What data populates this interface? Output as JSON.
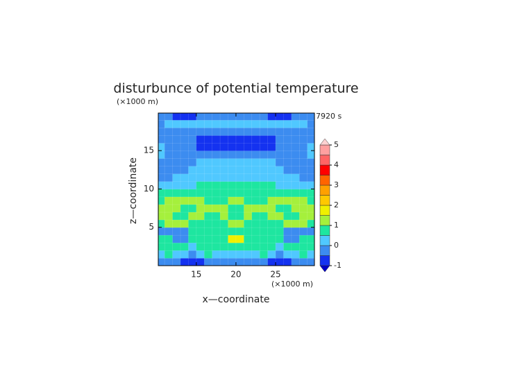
{
  "chart_data": {
    "type": "contour",
    "title": "disturbunce of potential temperature",
    "x_label": "x—coordinate",
    "y_label": "z—coordinate",
    "x_unit": "(×1000 m)",
    "y_unit": "(×1000 m)",
    "time_label": "7920 s",
    "xlim": [
      10.2,
      29.9
    ],
    "ylim": [
      0,
      19.9
    ],
    "xticks": [
      15,
      20,
      25
    ],
    "yticks": [
      5,
      10,
      15
    ],
    "x": [
      10.5,
      11.5,
      12.5,
      13.5,
      14.5,
      15.5,
      16.5,
      17.5,
      18.5,
      19.5,
      20.5,
      21.5,
      22.5,
      23.5,
      24.5,
      25.5,
      26.5,
      27.5,
      28.5,
      29.5
    ],
    "y": [
      0.5,
      1.5,
      2.5,
      3.5,
      4.5,
      5.5,
      6.5,
      7.5,
      8.5,
      9.5,
      10.5,
      11.5,
      12.5,
      13.5,
      14.5,
      15.5,
      16.5,
      17.5,
      18.5,
      19.5
    ],
    "z": [
      [
        -0.2,
        -0.2,
        -0.2,
        -0.7,
        -0.7,
        -0.7,
        -0.2,
        -0.2,
        -0.2,
        -0.2,
        -0.2,
        -0.2,
        -0.2,
        -0.2,
        -0.7,
        -0.7,
        -0.7,
        -0.2,
        -0.2,
        -0.2
      ],
      [
        0.2,
        0.7,
        0.2,
        0.2,
        -0.2,
        0.2,
        0.7,
        0.2,
        0.2,
        0.2,
        0.2,
        0.2,
        0.2,
        0.7,
        0.2,
        -0.2,
        0.2,
        0.2,
        0.7,
        0.2
      ],
      [
        0.7,
        0.7,
        0.7,
        0.7,
        0.2,
        0.7,
        0.7,
        0.7,
        0.7,
        0.7,
        0.7,
        0.7,
        0.7,
        0.7,
        0.7,
        0.2,
        0.7,
        0.7,
        0.7,
        0.7
      ],
      [
        0.7,
        0.7,
        -0.2,
        -0.2,
        0.7,
        0.7,
        0.7,
        0.7,
        0.7,
        1.7,
        1.7,
        0.7,
        0.7,
        0.7,
        0.7,
        0.7,
        -0.2,
        -0.2,
        0.7,
        0.7
      ],
      [
        -0.2,
        -0.2,
        -0.2,
        -0.2,
        0.7,
        0.7,
        0.7,
        0.7,
        0.7,
        0.7,
        0.7,
        0.7,
        0.7,
        0.7,
        0.7,
        0.7,
        -0.2,
        -0.2,
        -0.2,
        -0.2
      ],
      [
        0.7,
        1.2,
        1.2,
        1.2,
        0.7,
        0.7,
        0.7,
        0.7,
        0.7,
        1.2,
        1.2,
        0.7,
        0.7,
        0.7,
        0.7,
        0.7,
        1.2,
        1.2,
        1.2,
        0.7
      ],
      [
        1.2,
        1.2,
        0.7,
        0.7,
        1.2,
        1.2,
        0.7,
        0.7,
        1.2,
        0.7,
        0.7,
        1.2,
        0.7,
        0.7,
        1.2,
        1.2,
        0.7,
        0.7,
        1.2,
        1.2
      ],
      [
        1.2,
        1.2,
        1.2,
        0.7,
        0.7,
        1.2,
        1.2,
        1.2,
        1.2,
        0.7,
        0.7,
        1.2,
        1.2,
        1.2,
        1.2,
        0.7,
        0.7,
        1.2,
        1.2,
        1.2
      ],
      [
        0.7,
        1.2,
        1.2,
        1.2,
        1.2,
        1.2,
        0.7,
        0.7,
        0.7,
        1.2,
        1.2,
        0.7,
        0.7,
        0.7,
        1.2,
        1.2,
        1.2,
        1.2,
        1.2,
        0.7
      ],
      [
        0.7,
        0.7,
        0.7,
        0.7,
        0.7,
        0.7,
        0.7,
        0.7,
        0.7,
        0.7,
        0.7,
        0.7,
        0.7,
        0.7,
        0.7,
        0.7,
        0.7,
        0.7,
        0.7,
        0.7
      ],
      [
        0.2,
        0.2,
        0.2,
        0.2,
        0.2,
        0.7,
        0.7,
        0.7,
        0.7,
        0.7,
        0.7,
        0.7,
        0.7,
        0.7,
        0.7,
        0.2,
        0.2,
        0.2,
        0.2,
        0.2
      ],
      [
        -0.2,
        -0.2,
        0.2,
        0.2,
        0.2,
        0.2,
        0.2,
        0.2,
        0.2,
        0.2,
        0.2,
        0.2,
        0.2,
        0.2,
        0.2,
        0.2,
        0.2,
        0.2,
        -0.2,
        -0.2
      ],
      [
        -0.2,
        -0.2,
        -0.2,
        -0.2,
        0.2,
        0.2,
        0.2,
        0.2,
        0.2,
        0.2,
        0.2,
        0.2,
        0.2,
        0.2,
        0.2,
        0.2,
        -0.2,
        -0.2,
        -0.2,
        -0.2
      ],
      [
        -0.2,
        -0.2,
        -0.2,
        -0.2,
        -0.2,
        0.2,
        0.2,
        0.2,
        0.2,
        0.2,
        0.2,
        0.2,
        0.2,
        0.2,
        0.2,
        -0.2,
        -0.2,
        -0.2,
        -0.2,
        -0.2
      ],
      [
        0.2,
        -0.2,
        -0.2,
        -0.2,
        -0.2,
        -0.2,
        -0.2,
        -0.2,
        -0.2,
        -0.2,
        -0.2,
        -0.2,
        -0.2,
        -0.2,
        -0.2,
        -0.2,
        -0.2,
        -0.2,
        -0.2,
        0.2
      ],
      [
        0.2,
        -0.2,
        -0.2,
        -0.2,
        -0.2,
        -0.7,
        -0.7,
        -0.7,
        -0.7,
        -0.7,
        -0.7,
        -0.7,
        -0.7,
        -0.7,
        -0.7,
        -0.2,
        -0.2,
        -0.2,
        -0.2,
        0.2
      ],
      [
        -0.2,
        -0.2,
        -0.2,
        -0.2,
        -0.2,
        -0.7,
        -0.7,
        -0.7,
        -0.7,
        -0.7,
        -0.7,
        -0.7,
        -0.7,
        -0.7,
        -0.7,
        -0.2,
        -0.2,
        -0.2,
        -0.2,
        -0.2
      ],
      [
        -0.2,
        -0.2,
        -0.2,
        -0.2,
        -0.2,
        -0.2,
        -0.2,
        -0.2,
        -0.2,
        -0.2,
        -0.2,
        -0.2,
        -0.2,
        -0.2,
        -0.2,
        -0.2,
        -0.2,
        -0.2,
        -0.2,
        -0.2
      ],
      [
        -0.2,
        0.2,
        0.2,
        0.2,
        0.2,
        0.2,
        0.2,
        0.2,
        0.2,
        0.2,
        0.2,
        0.2,
        0.2,
        0.2,
        0.2,
        0.2,
        0.2,
        0.2,
        0.2,
        -0.2
      ],
      [
        -0.2,
        -0.2,
        -0.7,
        -0.7,
        -0.7,
        -0.2,
        -0.2,
        -0.2,
        -0.2,
        -0.2,
        -0.2,
        -0.2,
        -0.2,
        -0.2,
        -0.7,
        -0.7,
        -0.7,
        -0.2,
        -0.2,
        -0.2
      ]
    ],
    "levels": [
      -1,
      -0.5,
      0,
      0.5,
      1,
      1.5,
      2,
      2.5,
      3,
      3.5,
      4,
      4.5,
      5
    ],
    "colors": [
      "#0000c8",
      "#1432f0",
      "#3c8cf0",
      "#50c8ff",
      "#1ee6a0",
      "#a5f03c",
      "#f0f000",
      "#ffc800",
      "#ffa000",
      "#ff6400",
      "#ff0000",
      "#ff6464",
      "#ffa0a0",
      "#ffd2d2"
    ],
    "colorbar_ticks": [
      -1,
      0,
      1,
      2,
      3,
      4,
      5
    ]
  }
}
